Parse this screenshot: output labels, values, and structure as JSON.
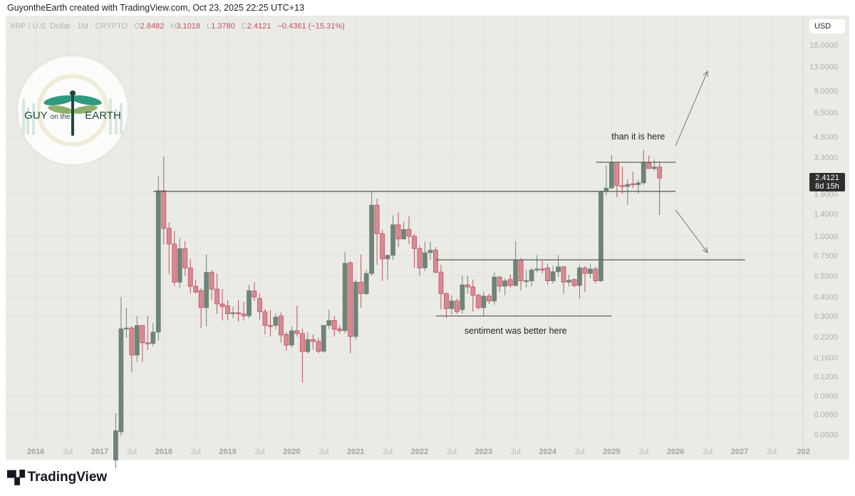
{
  "caption": "GuyontheEarth created with TradingView.com, Oct 23, 2025 22:25 UTC+13",
  "legend": {
    "symbol": "XRP / U.S. Dollar · 1M · CRYPTO",
    "o_label": "O",
    "o": "2.8482",
    "h_label": "H",
    "h": "3.1018",
    "l_label": "L",
    "l": "1.3780",
    "c_label": "C",
    "c": "2.4121",
    "change": "−0.4361 (−15.31%)"
  },
  "currency_button": "USD",
  "price_tag": {
    "price": "2.4121",
    "countdown": "8d 15h"
  },
  "logo": {
    "text_main": "GUY",
    "text_mid": "on the",
    "text_end": "EARTH"
  },
  "footer_brand": "TradingView",
  "colors": {
    "up": "#6f8478",
    "down": "#d88a93",
    "down_border": "#c2505f",
    "background": "#ebebe6",
    "line": "#5c605c"
  },
  "chart_data": {
    "type": "candlestick",
    "title": "",
    "scale": "log",
    "grid": true,
    "ylim": [
      0.045,
      21
    ],
    "y_ticks": [
      "18.0000",
      "13.0000",
      "9.0000",
      "6.5000",
      "4.5000",
      "3.3000",
      "1.9000",
      "1.4000",
      "1.0000",
      "0.7500",
      "0.5500",
      "0.4000",
      "0.3000",
      "0.2200",
      "0.1600",
      "0.1200",
      "0.0900",
      "0.0680",
      "0.0500"
    ],
    "x_ticks": [
      {
        "label": "2016",
        "date": "2016-01"
      },
      {
        "label": "Jul",
        "date": "2016-07"
      },
      {
        "label": "2017",
        "date": "2017-01"
      },
      {
        "label": "Jul",
        "date": "2017-07"
      },
      {
        "label": "2018",
        "date": "2018-01"
      },
      {
        "label": "Jul",
        "date": "2018-07"
      },
      {
        "label": "2019",
        "date": "2019-01"
      },
      {
        "label": "Jul",
        "date": "2019-07"
      },
      {
        "label": "2020",
        "date": "2020-01"
      },
      {
        "label": "Jul",
        "date": "2020-07"
      },
      {
        "label": "2021",
        "date": "2021-01"
      },
      {
        "label": "Jul",
        "date": "2021-07"
      },
      {
        "label": "2022",
        "date": "2022-01"
      },
      {
        "label": "Jul",
        "date": "2022-07"
      },
      {
        "label": "2023",
        "date": "2023-01"
      },
      {
        "label": "Jul",
        "date": "2023-07"
      },
      {
        "label": "2024",
        "date": "2024-01"
      },
      {
        "label": "Jul",
        "date": "2024-07"
      },
      {
        "label": "2025",
        "date": "2025-01"
      },
      {
        "label": "Jul",
        "date": "2025-07"
      },
      {
        "label": "2026",
        "date": "2026-01"
      },
      {
        "label": "Jul",
        "date": "2026-07"
      },
      {
        "label": "2027",
        "date": "2027-01"
      },
      {
        "label": "Jul",
        "date": "2027-07"
      },
      {
        "label": "202",
        "date": "2028-01"
      }
    ],
    "candles_fields": [
      "month",
      "open",
      "high",
      "low",
      "close"
    ],
    "candles": [
      [
        "2017-04",
        0.034,
        0.069,
        0.03,
        0.053
      ],
      [
        "2017-05",
        0.052,
        0.4,
        0.049,
        0.247
      ],
      [
        "2017-06",
        0.247,
        0.34,
        0.215,
        0.25
      ],
      [
        "2017-07",
        0.25,
        0.257,
        0.128,
        0.166
      ],
      [
        "2017-08",
        0.166,
        0.3,
        0.15,
        0.26
      ],
      [
        "2017-09",
        0.26,
        0.26,
        0.15,
        0.2
      ],
      [
        "2017-10",
        0.2,
        0.3,
        0.18,
        0.198
      ],
      [
        "2017-11",
        0.198,
        0.27,
        0.19,
        0.235
      ],
      [
        "2017-12",
        0.235,
        2.47,
        0.206,
        1.99
      ],
      [
        "2018-01",
        1.99,
        3.33,
        0.88,
        1.126
      ],
      [
        "2018-02",
        1.126,
        1.23,
        0.565,
        0.89
      ],
      [
        "2018-03",
        0.89,
        1.08,
        0.47,
        0.5
      ],
      [
        "2018-04",
        0.5,
        0.97,
        0.46,
        0.83
      ],
      [
        "2018-05",
        0.83,
        0.93,
        0.55,
        0.62
      ],
      [
        "2018-06",
        0.62,
        0.71,
        0.42,
        0.47
      ],
      [
        "2018-07",
        0.47,
        0.52,
        0.42,
        0.43
      ],
      [
        "2018-08",
        0.44,
        0.46,
        0.25,
        0.34
      ],
      [
        "2018-09",
        0.34,
        0.76,
        0.255,
        0.58
      ],
      [
        "2018-10",
        0.58,
        0.6,
        0.38,
        0.45
      ],
      [
        "2018-11",
        0.45,
        0.57,
        0.31,
        0.36
      ],
      [
        "2018-12",
        0.36,
        0.45,
        0.28,
        0.345
      ],
      [
        "2019-01",
        0.35,
        0.38,
        0.28,
        0.31
      ],
      [
        "2019-02",
        0.31,
        0.345,
        0.29,
        0.315
      ],
      [
        "2019-03",
        0.315,
        0.38,
        0.275,
        0.31
      ],
      [
        "2019-04",
        0.31,
        0.37,
        0.28,
        0.3
      ],
      [
        "2019-05",
        0.3,
        0.48,
        0.29,
        0.44
      ],
      [
        "2019-06",
        0.437,
        0.5,
        0.376,
        0.4
      ],
      [
        "2019-07",
        0.39,
        0.42,
        0.284,
        0.32
      ],
      [
        "2019-08",
        0.32,
        0.334,
        0.227,
        0.26
      ],
      [
        "2019-09",
        0.26,
        0.33,
        0.22,
        0.257
      ],
      [
        "2019-10",
        0.26,
        0.31,
        0.245,
        0.295
      ],
      [
        "2019-11",
        0.3,
        0.316,
        0.2,
        0.225
      ],
      [
        "2019-12",
        0.227,
        0.235,
        0.177,
        0.193
      ],
      [
        "2020-01",
        0.193,
        0.255,
        0.185,
        0.24
      ],
      [
        "2020-02",
        0.24,
        0.35,
        0.22,
        0.23
      ],
      [
        "2020-03",
        0.23,
        0.247,
        0.11,
        0.175
      ],
      [
        "2020-04",
        0.175,
        0.235,
        0.17,
        0.21
      ],
      [
        "2020-05",
        0.21,
        0.227,
        0.18,
        0.204
      ],
      [
        "2020-06",
        0.204,
        0.215,
        0.17,
        0.176
      ],
      [
        "2020-07",
        0.176,
        0.26,
        0.172,
        0.26
      ],
      [
        "2020-08",
        0.26,
        0.33,
        0.247,
        0.28
      ],
      [
        "2020-09",
        0.28,
        0.3,
        0.22,
        0.245
      ],
      [
        "2020-10",
        0.247,
        0.26,
        0.23,
        0.24
      ],
      [
        "2020-11",
        0.24,
        0.79,
        0.23,
        0.665
      ],
      [
        "2020-12",
        0.67,
        0.686,
        0.17,
        0.22
      ],
      [
        "2021-01",
        0.22,
        0.52,
        0.21,
        0.5
      ],
      [
        "2021-02",
        0.5,
        0.76,
        0.34,
        0.42
      ],
      [
        "2021-03",
        0.42,
        0.6,
        0.41,
        0.57
      ],
      [
        "2021-04",
        0.57,
        1.97,
        0.55,
        1.6
      ],
      [
        "2021-05",
        1.6,
        1.77,
        0.65,
        1.04
      ],
      [
        "2021-06",
        1.04,
        1.1,
        0.51,
        0.71
      ],
      [
        "2021-07",
        0.71,
        0.76,
        0.52,
        0.75
      ],
      [
        "2021-08",
        0.75,
        1.37,
        0.7,
        1.19
      ],
      [
        "2021-09",
        1.19,
        1.43,
        0.85,
        0.96
      ],
      [
        "2021-10",
        0.96,
        1.24,
        0.95,
        1.11
      ],
      [
        "2021-11",
        1.11,
        1.35,
        0.89,
        1.0
      ],
      [
        "2021-12",
        1.0,
        1.04,
        0.62,
        0.83
      ],
      [
        "2022-01",
        0.83,
        0.87,
        0.55,
        0.62
      ],
      [
        "2022-02",
        0.62,
        0.92,
        0.59,
        0.78
      ],
      [
        "2022-03",
        0.78,
        0.92,
        0.7,
        0.81
      ],
      [
        "2022-04",
        0.81,
        0.85,
        0.57,
        0.58
      ],
      [
        "2022-05",
        0.58,
        0.65,
        0.33,
        0.42
      ],
      [
        "2022-06",
        0.42,
        0.43,
        0.29,
        0.335
      ],
      [
        "2022-07",
        0.335,
        0.41,
        0.305,
        0.376
      ],
      [
        "2022-08",
        0.376,
        0.39,
        0.31,
        0.32
      ],
      [
        "2022-09",
        0.33,
        0.55,
        0.31,
        0.48
      ],
      [
        "2022-10",
        0.48,
        0.55,
        0.42,
        0.465
      ],
      [
        "2022-11",
        0.465,
        0.52,
        0.32,
        0.41
      ],
      [
        "2022-12",
        0.41,
        0.42,
        0.33,
        0.34
      ],
      [
        "2023-01",
        0.34,
        0.43,
        0.3,
        0.405
      ],
      [
        "2023-02",
        0.405,
        0.42,
        0.36,
        0.376
      ],
      [
        "2023-03",
        0.376,
        0.58,
        0.355,
        0.54
      ],
      [
        "2023-04",
        0.54,
        0.55,
        0.43,
        0.47
      ],
      [
        "2023-05",
        0.47,
        0.53,
        0.41,
        0.51
      ],
      [
        "2023-06",
        0.52,
        0.56,
        0.46,
        0.475
      ],
      [
        "2023-07",
        0.475,
        0.93,
        0.466,
        0.7
      ],
      [
        "2023-08",
        0.7,
        0.72,
        0.44,
        0.51
      ],
      [
        "2023-09",
        0.51,
        0.6,
        0.46,
        0.512
      ],
      [
        "2023-10",
        0.51,
        0.62,
        0.47,
        0.6
      ],
      [
        "2023-11",
        0.6,
        0.75,
        0.58,
        0.61
      ],
      [
        "2023-12",
        0.61,
        0.69,
        0.57,
        0.6
      ],
      [
        "2024-01",
        0.62,
        0.66,
        0.48,
        0.51
      ],
      [
        "2024-02",
        0.51,
        0.64,
        0.49,
        0.585
      ],
      [
        "2024-03",
        0.585,
        0.75,
        0.54,
        0.63
      ],
      [
        "2024-04",
        0.63,
        0.64,
        0.42,
        0.5
      ],
      [
        "2024-05",
        0.5,
        0.56,
        0.47,
        0.515
      ],
      [
        "2024-06",
        0.52,
        0.53,
        0.46,
        0.475
      ],
      [
        "2024-07",
        0.475,
        0.65,
        0.39,
        0.62
      ],
      [
        "2024-08",
        0.62,
        0.64,
        0.43,
        0.57
      ],
      [
        "2024-09",
        0.57,
        0.66,
        0.53,
        0.61
      ],
      [
        "2024-10",
        0.61,
        0.63,
        0.49,
        0.51
      ],
      [
        "2024-11",
        0.51,
        1.99,
        0.5,
        1.97
      ],
      [
        "2024-12",
        1.97,
        2.93,
        1.85,
        2.07
      ],
      [
        "2025-01",
        2.07,
        3.4,
        2.07,
        3.06
      ],
      [
        "2025-02",
        3.06,
        3.06,
        1.8,
        2.15
      ],
      [
        "2025-03",
        2.15,
        2.87,
        1.9,
        2.12
      ],
      [
        "2025-04",
        2.12,
        2.36,
        1.61,
        2.19
      ],
      [
        "2025-05",
        2.21,
        2.66,
        2.07,
        2.18
      ],
      [
        "2025-06",
        2.18,
        2.35,
        1.91,
        2.24
      ],
      [
        "2025-07",
        2.24,
        3.66,
        2.17,
        3.06
      ],
      [
        "2025-08",
        3.03,
        3.4,
        2.78,
        2.78
      ],
      [
        "2025-09",
        2.78,
        3.19,
        2.69,
        2.8482
      ],
      [
        "2025-10",
        2.8482,
        3.1018,
        1.378,
        2.4121
      ]
    ],
    "levels": [
      {
        "price": 1.97,
        "from": "2017-12",
        "to": "2026-01"
      },
      {
        "price": 3.06,
        "from": "2024-11",
        "to": "2026-01"
      },
      {
        "price": 0.7,
        "from": "2022-05",
        "to": "2027-02"
      },
      {
        "price": 0.3,
        "from": "2022-05",
        "to": "2025-01"
      }
    ],
    "arrows": [
      {
        "from": {
          "date": "2026-01",
          "price": 3.92
        },
        "to": {
          "date": "2026-07",
          "price": 12.1
        }
      },
      {
        "from": {
          "date": "2026-01",
          "price": 1.49
        },
        "to": {
          "date": "2026-07",
          "price": 0.78
        }
      }
    ],
    "annotations": [
      {
        "text": "than it is here",
        "date": "2025-06",
        "price": 4.5
      },
      {
        "text": "sentiment was better here",
        "date": "2023-07",
        "price": 0.24
      }
    ]
  }
}
